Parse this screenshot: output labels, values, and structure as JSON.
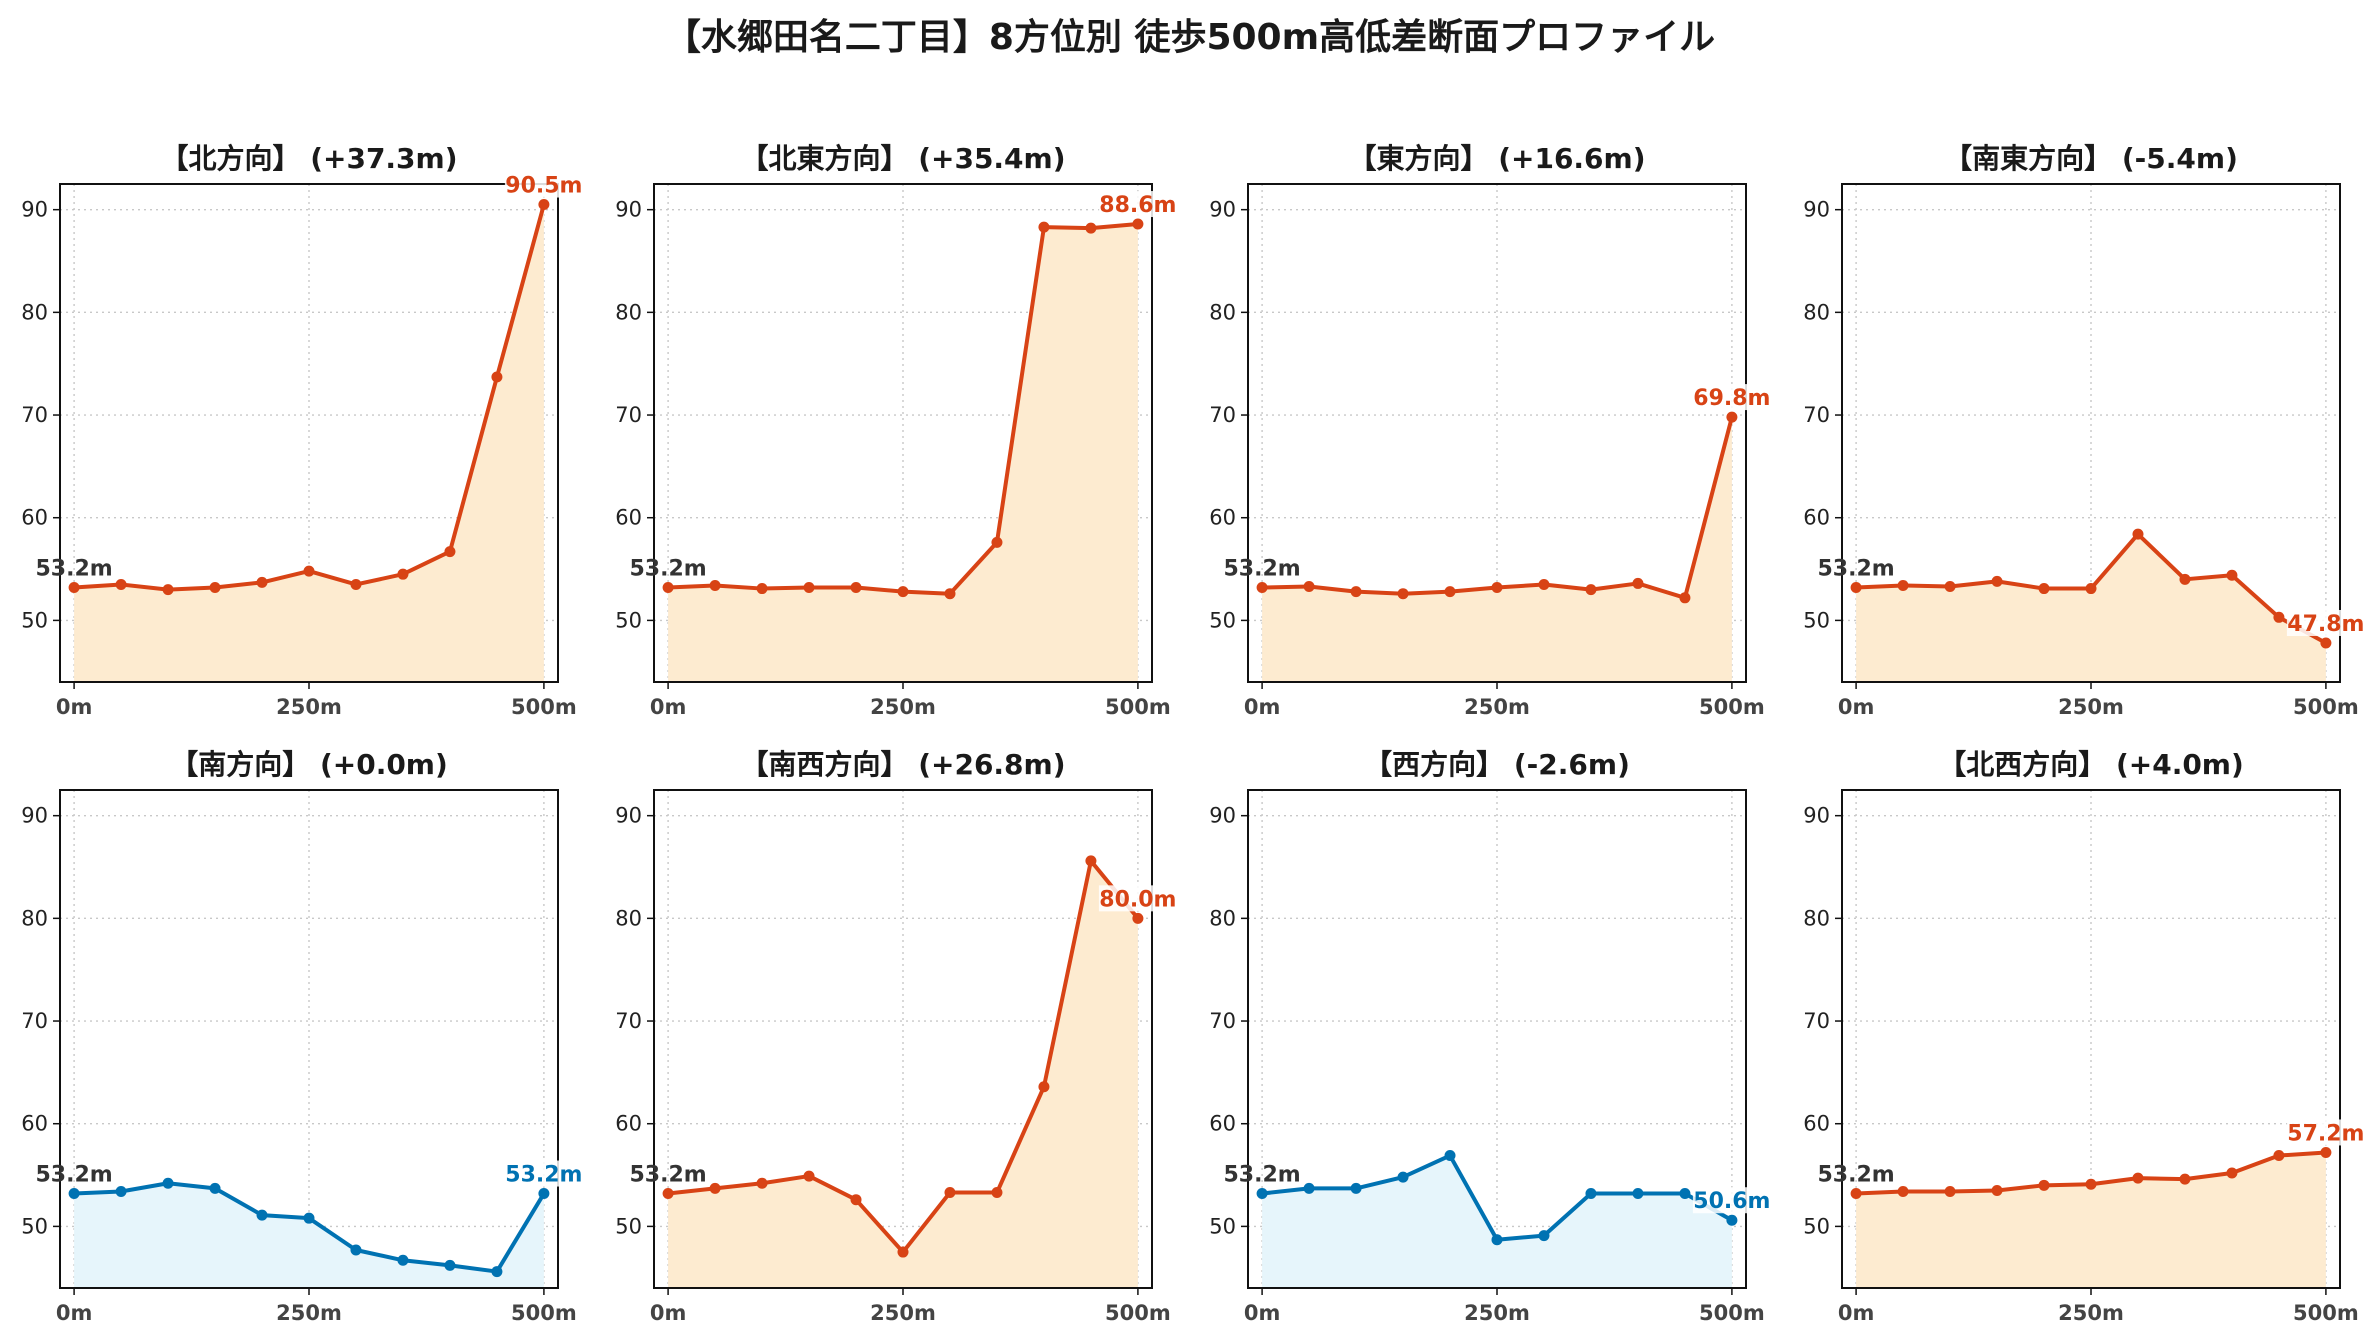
{
  "title": "【水郷田名二丁目】8方位別 徒歩500m高低差断面プロファイル",
  "colors": {
    "up_line": "#d84315",
    "up_fill": "#fdebd0",
    "down_line": "#0072b2",
    "down_fill": "#e6f5fb"
  },
  "chart_data": [
    {
      "type": "area",
      "title": "【北方向】 (+37.3m)",
      "trend": "up",
      "x": [
        0,
        50,
        100,
        150,
        200,
        250,
        300,
        350,
        400,
        450,
        500
      ],
      "values": [
        53.2,
        53.5,
        53.0,
        53.2,
        53.7,
        54.8,
        53.5,
        54.5,
        56.7,
        73.7,
        90.5
      ],
      "start_label": "53.2m",
      "end_label": "90.5m",
      "xticks": [
        "0m",
        "250m",
        "500m"
      ],
      "yticks": [
        "50",
        "60",
        "70",
        "80",
        "90"
      ],
      "ylim": [
        44,
        92.5
      ],
      "xlim": [
        -15,
        515
      ],
      "grid": true
    },
    {
      "type": "area",
      "title": "【北東方向】 (+35.4m)",
      "trend": "up",
      "x": [
        0,
        50,
        100,
        150,
        200,
        250,
        300,
        350,
        400,
        450,
        500
      ],
      "values": [
        53.2,
        53.4,
        53.1,
        53.2,
        53.2,
        52.8,
        52.6,
        57.6,
        88.3,
        88.2,
        88.6
      ],
      "start_label": "53.2m",
      "end_label": "88.6m",
      "xticks": [
        "0m",
        "250m",
        "500m"
      ],
      "yticks": [
        "50",
        "60",
        "70",
        "80",
        "90"
      ],
      "ylim": [
        44,
        92.5
      ],
      "xlim": [
        -15,
        515
      ],
      "grid": true
    },
    {
      "type": "area",
      "title": "【東方向】 (+16.6m)",
      "trend": "up",
      "x": [
        0,
        50,
        100,
        150,
        200,
        250,
        300,
        350,
        400,
        450,
        500
      ],
      "values": [
        53.2,
        53.3,
        52.8,
        52.6,
        52.8,
        53.2,
        53.5,
        53.0,
        53.6,
        52.2,
        69.8
      ],
      "start_label": "53.2m",
      "end_label": "69.8m",
      "xticks": [
        "0m",
        "250m",
        "500m"
      ],
      "yticks": [
        "50",
        "60",
        "70",
        "80",
        "90"
      ],
      "ylim": [
        44,
        92.5
      ],
      "xlim": [
        -15,
        515
      ],
      "grid": true
    },
    {
      "type": "area",
      "title": "【南東方向】 (-5.4m)",
      "trend": "up",
      "x": [
        0,
        50,
        100,
        150,
        200,
        250,
        300,
        350,
        400,
        450,
        500
      ],
      "values": [
        53.2,
        53.4,
        53.3,
        53.8,
        53.1,
        53.1,
        58.4,
        54.0,
        54.4,
        50.3,
        47.8
      ],
      "start_label": "53.2m",
      "end_label": "47.8m",
      "xticks": [
        "0m",
        "250m",
        "500m"
      ],
      "yticks": [
        "50",
        "60",
        "70",
        "80",
        "90"
      ],
      "ylim": [
        44,
        92.5
      ],
      "xlim": [
        -15,
        515
      ],
      "grid": true
    },
    {
      "type": "area",
      "title": "【南方向】 (+0.0m)",
      "trend": "down",
      "x": [
        0,
        50,
        100,
        150,
        200,
        250,
        300,
        350,
        400,
        450,
        500
      ],
      "values": [
        53.2,
        53.4,
        54.2,
        53.7,
        51.1,
        50.8,
        47.7,
        46.7,
        46.2,
        45.6,
        53.2
      ],
      "start_label": "53.2m",
      "end_label": "53.2m",
      "xticks": [
        "0m",
        "250m",
        "500m"
      ],
      "yticks": [
        "50",
        "60",
        "70",
        "80",
        "90"
      ],
      "ylim": [
        44,
        92.5
      ],
      "xlim": [
        -15,
        515
      ],
      "grid": true
    },
    {
      "type": "area",
      "title": "【南西方向】 (+26.8m)",
      "trend": "up",
      "x": [
        0,
        50,
        100,
        150,
        200,
        250,
        300,
        350,
        400,
        450,
        500
      ],
      "values": [
        53.2,
        53.7,
        54.2,
        54.9,
        52.6,
        47.5,
        53.3,
        53.3,
        63.6,
        85.6,
        80.0
      ],
      "start_label": "53.2m",
      "end_label": "80.0m",
      "xticks": [
        "0m",
        "250m",
        "500m"
      ],
      "yticks": [
        "50",
        "60",
        "70",
        "80",
        "90"
      ],
      "ylim": [
        44,
        92.5
      ],
      "xlim": [
        -15,
        515
      ],
      "grid": true
    },
    {
      "type": "area",
      "title": "【西方向】 (-2.6m)",
      "trend": "down",
      "x": [
        0,
        50,
        100,
        150,
        200,
        250,
        300,
        350,
        400,
        450,
        500
      ],
      "values": [
        53.2,
        53.7,
        53.7,
        54.8,
        56.9,
        48.7,
        49.1,
        53.2,
        53.2,
        53.2,
        50.6
      ],
      "start_label": "53.2m",
      "end_label": "50.6m",
      "xticks": [
        "0m",
        "250m",
        "500m"
      ],
      "yticks": [
        "50",
        "60",
        "70",
        "80",
        "90"
      ],
      "ylim": [
        44,
        92.5
      ],
      "xlim": [
        -15,
        515
      ],
      "grid": true
    },
    {
      "type": "area",
      "title": "【北西方向】 (+4.0m)",
      "trend": "up",
      "x": [
        0,
        50,
        100,
        150,
        200,
        250,
        300,
        350,
        400,
        450,
        500
      ],
      "values": [
        53.2,
        53.4,
        53.4,
        53.5,
        54.0,
        54.1,
        54.7,
        54.6,
        55.2,
        56.9,
        57.2
      ],
      "start_label": "53.2m",
      "end_label": "57.2m",
      "xticks": [
        "0m",
        "250m",
        "500m"
      ],
      "yticks": [
        "50",
        "60",
        "70",
        "80",
        "90"
      ],
      "ylim": [
        44,
        92.5
      ],
      "xlim": [
        -15,
        515
      ],
      "grid": true
    }
  ]
}
